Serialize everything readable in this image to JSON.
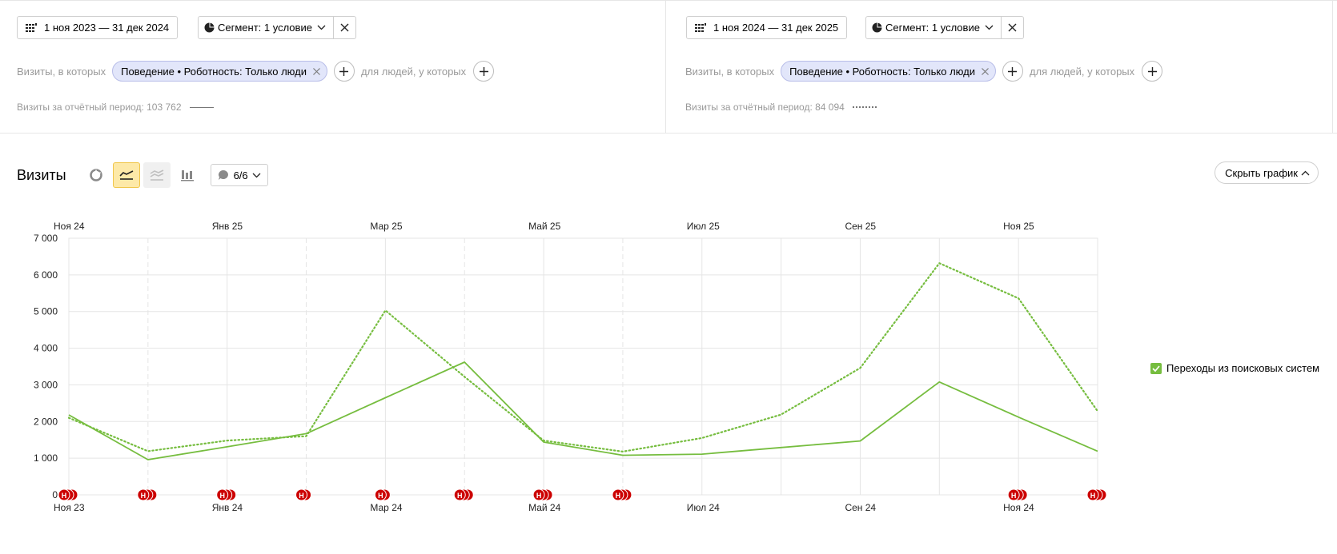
{
  "left_panel": {
    "date_range": "1 ноя 2023 — 31 дек 2024",
    "segment_label": "Сегмент: 1 условие",
    "filter_prefix": "Визиты, в которых",
    "chip_label": "Поведение • Роботность: Только люди",
    "people_label": "для людей, у которых",
    "period_label": "Визиты за отчётный период: 103 762"
  },
  "right_panel": {
    "date_range": "1 ноя 2024 — 31 дек 2025",
    "segment_label": "Сегмент: 1 условие",
    "filter_prefix": "Визиты, в которых",
    "chip_label": "Поведение • Роботность: Только люди",
    "people_label": "для людей, у которых",
    "period_label": "Визиты за отчётный период: 84 094"
  },
  "chart_header": {
    "title": "Визиты",
    "notes_label": "6/6",
    "hide_label": "Скрыть график"
  },
  "legend": {
    "label": "Переходы из поисковых систем"
  },
  "colors": {
    "series": "#76bd3f",
    "grid": "#e5e5e5",
    "note_marker": "#cc0000",
    "active_tool": "#fde9a8"
  },
  "chart_data": {
    "type": "line",
    "ylim": [
      0,
      7000
    ],
    "y_ticks": [
      "0",
      "1 000",
      "2 000",
      "3 000",
      "4 000",
      "5 000",
      "6 000",
      "7 000"
    ],
    "top_axis_labels": [
      "Ноя 24",
      "Янв 25",
      "Мар 25",
      "Май 25",
      "Июл 25",
      "Сен 25",
      "Ноя 25"
    ],
    "bottom_axis_labels": [
      "Ноя 23",
      "Янв 24",
      "Мар 24",
      "Май 24",
      "Июл 24",
      "Сен 24",
      "Ноя 24"
    ],
    "series": [
      {
        "line": "solid",
        "values": [
          2180,
          960,
          1310,
          1670,
          2650,
          3620,
          1440,
          1080,
          1110,
          1290,
          1470,
          3080,
          2120,
          1190
        ]
      },
      {
        "line": "dotted",
        "values": [
          2100,
          1190,
          1480,
          1600,
          5030,
          3220,
          1480,
          1180,
          1550,
          2190,
          3460,
          6320,
          5360,
          2280
        ]
      }
    ],
    "notes": [
      {
        "period": 0,
        "count": 3
      },
      {
        "period": 1,
        "count": 3
      },
      {
        "period": 2,
        "count": 3
      },
      {
        "period": 3,
        "count": 2
      },
      {
        "period": 4,
        "count": 2
      },
      {
        "period": 5,
        "count": 3
      },
      {
        "period": 6,
        "count": 3
      },
      {
        "period": 7,
        "count": 3
      },
      {
        "period": 12,
        "count": 3
      },
      {
        "period": 13,
        "count": 3
      }
    ],
    "note_marker_label": "Н"
  }
}
